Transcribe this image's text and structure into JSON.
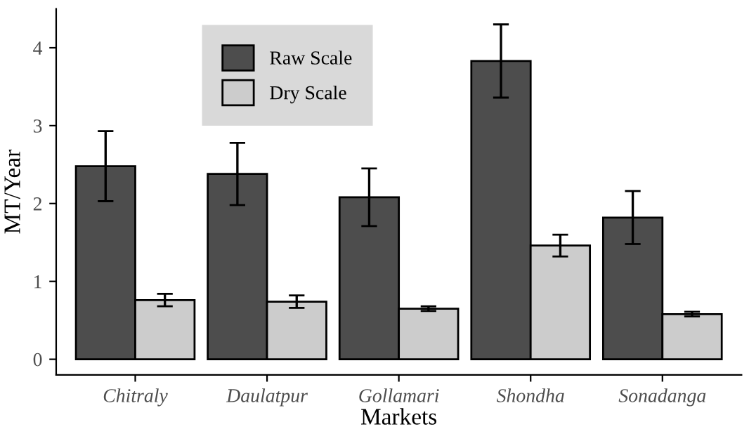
{
  "chart_data": {
    "type": "bar",
    "xlabel": "Markets",
    "ylabel": "MT/Year",
    "categories": [
      "Chitraly",
      "Daulatpur",
      "Gollamari",
      "Shondha",
      "Sonadanga"
    ],
    "series": [
      {
        "name": "Raw Scale",
        "color": "#4d4d4d",
        "values": [
          2.48,
          2.38,
          2.08,
          3.83,
          1.82
        ],
        "errors": [
          0.45,
          0.4,
          0.37,
          0.47,
          0.34
        ]
      },
      {
        "name": "Dry Scale",
        "color": "#cccccc",
        "values": [
          0.76,
          0.74,
          0.65,
          1.46,
          0.58
        ],
        "errors": [
          0.08,
          0.08,
          0.03,
          0.14,
          0.03
        ]
      }
    ],
    "ylim": [
      -0.2,
      4.5
    ],
    "yticks": [
      0,
      1,
      2,
      3,
      4
    ],
    "grid": false,
    "legend": "top left"
  }
}
